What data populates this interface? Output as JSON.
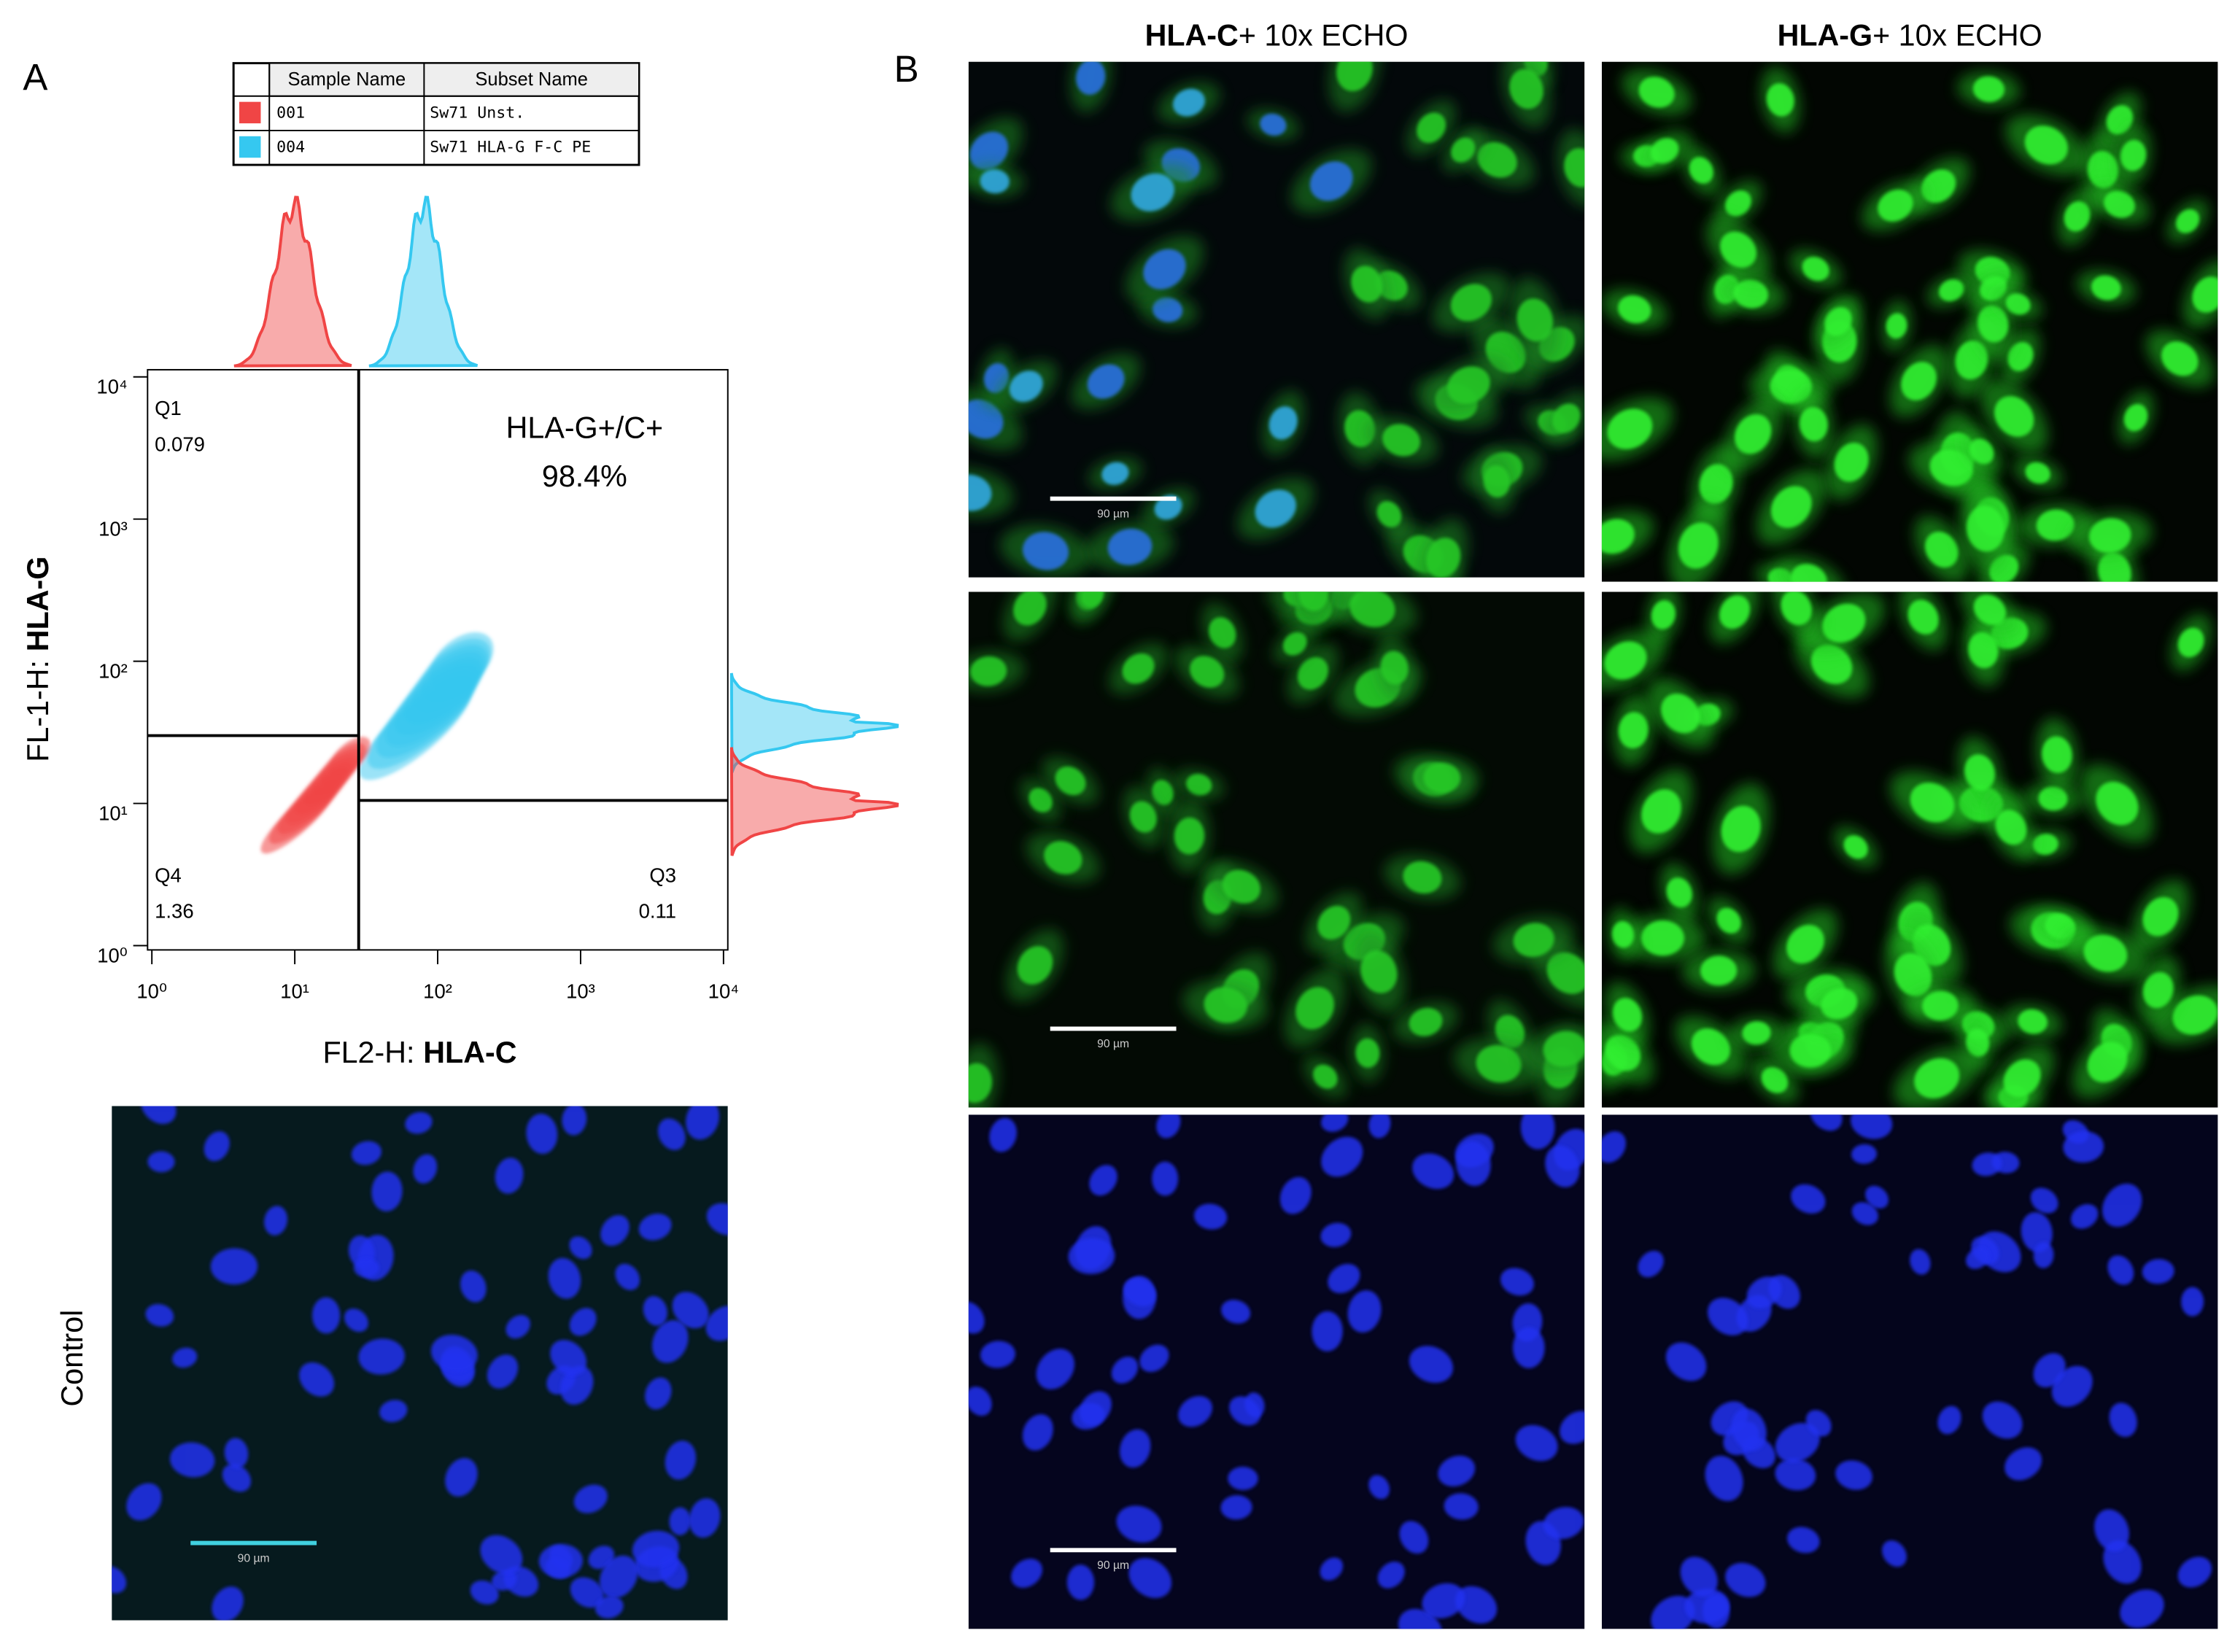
{
  "panel_labels": {
    "a": "A",
    "b": "B"
  },
  "legend_table": {
    "headers": [
      "Sample Name",
      "Subset Name"
    ],
    "rows": [
      {
        "sample": "001",
        "subset": "Sw71 Unst.",
        "color": "#f04545"
      },
      {
        "sample": "004",
        "subset": "Sw71 HLA-G F-C PE",
        "color": "#35c8f0"
      }
    ]
  },
  "flow_plot": {
    "x_label_prefix": "FL2-H:",
    "x_label_marker": "HLA-C",
    "y_label_prefix": "FL-1-H:",
    "y_label_marker": "HLA-G",
    "log_scale": true,
    "xlim": [
      1,
      10000
    ],
    "ylim": [
      1,
      10000
    ],
    "xticks": [
      {
        "value": 1,
        "label": "10⁰"
      },
      {
        "value": 10,
        "label": "10¹"
      },
      {
        "value": 100,
        "label": "10²"
      },
      {
        "value": 1000,
        "label": "10³"
      },
      {
        "value": 10000,
        "label": "10⁴"
      }
    ],
    "yticks": [
      {
        "value": 1,
        "label": "10⁰"
      },
      {
        "value": 10,
        "label": "10¹"
      },
      {
        "value": 100,
        "label": "10²"
      },
      {
        "value": 1000,
        "label": "10³"
      },
      {
        "value": 10000,
        "label": "10⁴"
      }
    ],
    "gate_x": 28,
    "gate_y_left": 30,
    "gate_y_right": 10.5,
    "quadrants": [
      {
        "name": "Q1",
        "value": 0.079
      },
      {
        "name": "Q3",
        "value": 0.11
      },
      {
        "name": "Q4",
        "value": 1.36
      }
    ],
    "annotation_title": "HLA-G+/C+",
    "annotation_value": {
      "value": 98.4,
      "label": "98.4%"
    }
  },
  "columns": [
    {
      "marker": "HLA-C",
      "suffix": "+ 10x ECHO"
    },
    {
      "marker": "HLA-G",
      "suffix": "+ 10x ECHO"
    }
  ],
  "control_label": "Control",
  "scale_bar_label": "90 µm"
}
